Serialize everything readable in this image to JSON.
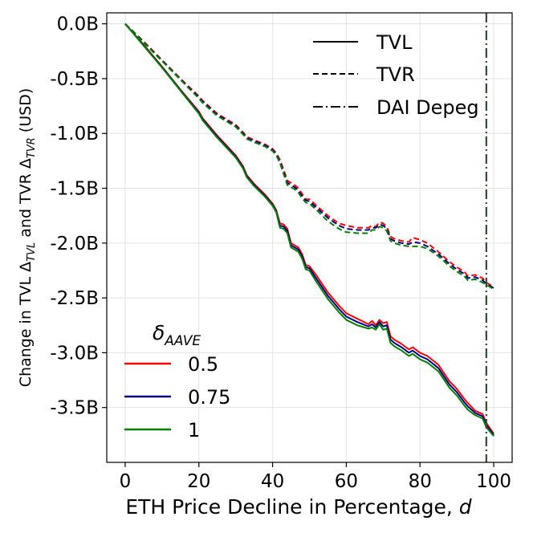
{
  "chart_data": {
    "type": "line",
    "title": "",
    "xlabel": "ETH Price Decline in Percentage, ",
    "xlabel_var": "d",
    "ylabel_pre": "Change in TVL Δ",
    "ylabel_sub1": "TVL",
    "ylabel_mid": " and TVR Δ",
    "ylabel_sub2": "TVR",
    "ylabel_post": " (USD)",
    "xlim": [
      -5,
      105
    ],
    "ylim": [
      -4.0,
      0.1
    ],
    "x_ticks": [
      0,
      20,
      40,
      60,
      80,
      100
    ],
    "x_tick_labels": [
      "0",
      "20",
      "40",
      "60",
      "80",
      "100"
    ],
    "y_ticks": [
      0.0,
      -0.5,
      -1.0,
      -1.5,
      -2.0,
      -2.5,
      -3.0,
      -3.5
    ],
    "y_tick_labels": [
      "0.0B",
      "-0.5B",
      "-1.0B",
      "-1.5B",
      "-2.0B",
      "-2.5B",
      "-3.0B",
      "-3.5B"
    ],
    "grid": true,
    "vline": {
      "x": 98,
      "label": "DAI Depeg",
      "color": "#2f4f2f"
    },
    "style_legend": {
      "placement": "top-right",
      "items": [
        {
          "label": "TVL",
          "dash": "solid"
        },
        {
          "label": "TVR",
          "dash": "dashed"
        },
        {
          "label": "DAI Depeg",
          "dash": "dashdot"
        }
      ]
    },
    "color_legend": {
      "placement": "bottom-left",
      "title_symbol": "δ",
      "title_sub": "AAVE",
      "items": [
        {
          "label": "0.5",
          "color": "#ff0000"
        },
        {
          "label": "0.75",
          "color": "#000080"
        },
        {
          "label": "1",
          "color": "#008000"
        }
      ]
    },
    "series": [
      {
        "name": "TVL δ=0.5",
        "metric": "TVL",
        "delta": "0.5",
        "color": "#ff0000",
        "dash": "solid",
        "x": [
          0,
          5,
          10,
          15,
          20,
          21,
          25,
          30,
          32,
          33,
          35,
          38,
          40,
          41,
          42,
          43,
          44,
          45,
          46,
          47,
          48,
          49,
          50,
          52,
          55,
          58,
          60,
          63,
          66,
          67,
          68,
          69,
          70,
          71,
          72,
          73,
          75,
          77,
          78,
          80,
          82,
          85,
          88,
          90,
          92,
          93,
          95,
          97,
          98,
          100
        ],
        "y": [
          0,
          -0.19,
          -0.39,
          -0.6,
          -0.8,
          -0.86,
          -1.02,
          -1.2,
          -1.3,
          -1.38,
          -1.46,
          -1.56,
          -1.64,
          -1.7,
          -1.82,
          -1.83,
          -1.87,
          -2.0,
          -2.02,
          -2.04,
          -2.1,
          -2.2,
          -2.21,
          -2.3,
          -2.45,
          -2.57,
          -2.64,
          -2.69,
          -2.74,
          -2.71,
          -2.75,
          -2.7,
          -2.73,
          -2.72,
          -2.85,
          -2.88,
          -2.92,
          -2.97,
          -2.95,
          -3.0,
          -3.03,
          -3.11,
          -3.26,
          -3.33,
          -3.42,
          -3.46,
          -3.53,
          -3.56,
          -3.64,
          -3.74
        ]
      },
      {
        "name": "TVL δ=0.75",
        "metric": "TVL",
        "delta": "0.75",
        "color": "#000080",
        "dash": "solid",
        "x": [
          0,
          5,
          10,
          15,
          20,
          21,
          25,
          30,
          32,
          33,
          35,
          38,
          40,
          41,
          42,
          43,
          44,
          45,
          46,
          47,
          48,
          49,
          50,
          52,
          55,
          58,
          60,
          63,
          66,
          67,
          68,
          69,
          70,
          71,
          72,
          73,
          75,
          77,
          78,
          80,
          82,
          85,
          88,
          90,
          92,
          93,
          95,
          97,
          98,
          100
        ],
        "y": [
          0,
          -0.195,
          -0.395,
          -0.605,
          -0.81,
          -0.87,
          -1.03,
          -1.21,
          -1.31,
          -1.39,
          -1.47,
          -1.57,
          -1.65,
          -1.71,
          -1.84,
          -1.85,
          -1.89,
          -2.02,
          -2.04,
          -2.06,
          -2.12,
          -2.22,
          -2.23,
          -2.33,
          -2.48,
          -2.6,
          -2.67,
          -2.72,
          -2.76,
          -2.74,
          -2.77,
          -2.72,
          -2.76,
          -2.75,
          -2.88,
          -2.91,
          -2.95,
          -3.0,
          -2.98,
          -3.03,
          -3.06,
          -3.14,
          -3.29,
          -3.36,
          -3.45,
          -3.49,
          -3.55,
          -3.58,
          -3.66,
          -3.75
        ]
      },
      {
        "name": "TVL δ=1",
        "metric": "TVL",
        "delta": "1",
        "color": "#008000",
        "dash": "solid",
        "x": [
          0,
          5,
          10,
          15,
          20,
          21,
          25,
          30,
          32,
          33,
          35,
          38,
          40,
          41,
          42,
          43,
          44,
          45,
          46,
          47,
          48,
          49,
          50,
          52,
          55,
          58,
          60,
          63,
          66,
          67,
          68,
          69,
          70,
          71,
          72,
          73,
          75,
          77,
          78,
          80,
          82,
          85,
          88,
          90,
          92,
          93,
          95,
          97,
          98,
          100
        ],
        "y": [
          0,
          -0.2,
          -0.4,
          -0.61,
          -0.82,
          -0.88,
          -1.04,
          -1.22,
          -1.32,
          -1.4,
          -1.48,
          -1.58,
          -1.66,
          -1.72,
          -1.86,
          -1.87,
          -1.91,
          -2.04,
          -2.06,
          -2.08,
          -2.14,
          -2.24,
          -2.25,
          -2.36,
          -2.51,
          -2.63,
          -2.7,
          -2.75,
          -2.78,
          -2.77,
          -2.79,
          -2.74,
          -2.79,
          -2.78,
          -2.91,
          -2.94,
          -2.98,
          -3.03,
          -3.01,
          -3.06,
          -3.09,
          -3.17,
          -3.32,
          -3.39,
          -3.48,
          -3.52,
          -3.57,
          -3.6,
          -3.68,
          -3.76
        ]
      },
      {
        "name": "TVR δ=0.5",
        "metric": "TVR",
        "delta": "0.5",
        "color": "#ff0000",
        "dash": "dashed",
        "x": [
          0,
          5,
          10,
          15,
          20,
          21,
          25,
          30,
          32,
          33,
          35,
          38,
          40,
          41,
          42,
          43,
          44,
          45,
          46,
          47,
          48,
          49,
          50,
          52,
          55,
          58,
          60,
          63,
          66,
          67,
          68,
          69,
          70,
          71,
          72,
          73,
          75,
          77,
          78,
          80,
          82,
          85,
          88,
          90,
          92,
          93,
          95,
          97,
          98,
          100
        ],
        "y": [
          0,
          -0.16,
          -0.33,
          -0.5,
          -0.66,
          -0.7,
          -0.82,
          -0.92,
          -0.99,
          -1.03,
          -1.06,
          -1.1,
          -1.14,
          -1.18,
          -1.24,
          -1.33,
          -1.43,
          -1.45,
          -1.47,
          -1.5,
          -1.55,
          -1.6,
          -1.6,
          -1.66,
          -1.75,
          -1.82,
          -1.84,
          -1.86,
          -1.86,
          -1.84,
          -1.85,
          -1.81,
          -1.82,
          -1.85,
          -1.94,
          -1.96,
          -1.98,
          -1.99,
          -1.95,
          -1.97,
          -2.0,
          -2.08,
          -2.17,
          -2.22,
          -2.26,
          -2.3,
          -2.29,
          -2.32,
          -2.36,
          -2.4
        ]
      },
      {
        "name": "TVR δ=0.75",
        "metric": "TVR",
        "delta": "0.75",
        "color": "#000080",
        "dash": "dashed",
        "x": [
          0,
          5,
          10,
          15,
          20,
          21,
          25,
          30,
          32,
          33,
          35,
          38,
          40,
          41,
          42,
          43,
          44,
          45,
          46,
          47,
          48,
          49,
          50,
          52,
          55,
          58,
          60,
          63,
          66,
          67,
          68,
          69,
          70,
          71,
          72,
          73,
          75,
          77,
          78,
          80,
          82,
          85,
          88,
          90,
          92,
          93,
          95,
          97,
          98,
          100
        ],
        "y": [
          0,
          -0.165,
          -0.335,
          -0.505,
          -0.67,
          -0.71,
          -0.83,
          -0.93,
          -1.0,
          -1.04,
          -1.07,
          -1.11,
          -1.15,
          -1.19,
          -1.26,
          -1.35,
          -1.45,
          -1.47,
          -1.49,
          -1.52,
          -1.57,
          -1.61,
          -1.62,
          -1.68,
          -1.77,
          -1.84,
          -1.87,
          -1.88,
          -1.88,
          -1.86,
          -1.86,
          -1.83,
          -1.84,
          -1.87,
          -1.96,
          -1.98,
          -2.0,
          -2.01,
          -1.99,
          -2.0,
          -2.03,
          -2.1,
          -2.19,
          -2.24,
          -2.28,
          -2.32,
          -2.31,
          -2.34,
          -2.37,
          -2.41
        ]
      },
      {
        "name": "TVR δ=1",
        "metric": "TVR",
        "delta": "1",
        "color": "#008000",
        "dash": "dashed",
        "x": [
          0,
          5,
          10,
          15,
          20,
          21,
          25,
          30,
          32,
          33,
          35,
          38,
          40,
          41,
          42,
          43,
          44,
          45,
          46,
          47,
          48,
          49,
          50,
          52,
          55,
          58,
          60,
          63,
          66,
          67,
          68,
          69,
          70,
          71,
          72,
          73,
          75,
          77,
          78,
          80,
          82,
          85,
          88,
          90,
          92,
          93,
          95,
          97,
          98,
          100
        ],
        "y": [
          0,
          -0.17,
          -0.34,
          -0.51,
          -0.68,
          -0.72,
          -0.84,
          -0.94,
          -1.01,
          -1.05,
          -1.08,
          -1.12,
          -1.16,
          -1.2,
          -1.27,
          -1.37,
          -1.47,
          -1.49,
          -1.51,
          -1.54,
          -1.59,
          -1.63,
          -1.64,
          -1.7,
          -1.8,
          -1.87,
          -1.9,
          -1.91,
          -1.91,
          -1.88,
          -1.88,
          -1.85,
          -1.86,
          -1.89,
          -1.98,
          -2.0,
          -2.02,
          -2.03,
          -2.03,
          -2.03,
          -2.05,
          -2.12,
          -2.21,
          -2.26,
          -2.3,
          -2.34,
          -2.33,
          -2.36,
          -2.38,
          -2.42
        ]
      }
    ]
  }
}
